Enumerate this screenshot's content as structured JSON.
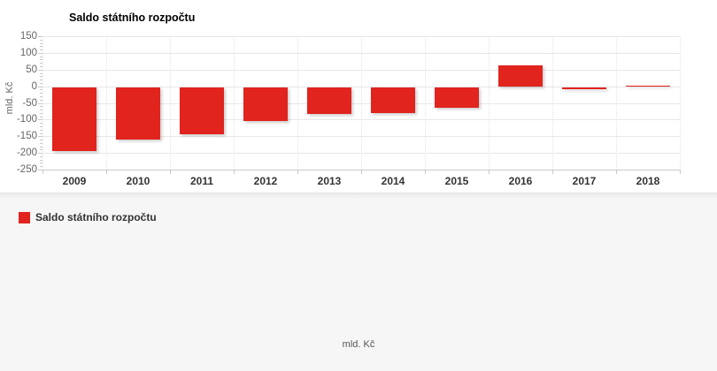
{
  "header": {
    "title": "Saldo státního rozpočtu"
  },
  "legend": {
    "label": "Saldo státního rozpočtu",
    "color": "#e1241e"
  },
  "bottom_axis_title": "mld. Kč",
  "colors": {
    "bar": "#e1241e",
    "panel_background": "#ffffff",
    "page_background": "#f6f6f6",
    "gridline": "#e7e7e7",
    "axis_text": "#666666",
    "category_text": "#333333"
  },
  "chart_data": {
    "type": "bar",
    "title": "Saldo státního rozpočtu",
    "categories": [
      "2009",
      "2010",
      "2011",
      "2012",
      "2013",
      "2014",
      "2015",
      "2016",
      "2017",
      "2018"
    ],
    "series": [
      {
        "name": "Saldo státního rozpočtu",
        "color": "#e1241e",
        "values": [
          -192.4,
          -156.4,
          -142.8,
          -101.0,
          -81.3,
          -77.8,
          -62.8,
          61.8,
          -6.2,
          2.9
        ]
      }
    ],
    "xlabel": "",
    "ylabel": "mld. Kč",
    "ylim": [
      -250,
      150
    ],
    "ytick_step": 50,
    "ytick_minor_step": 10,
    "grid": true,
    "legend_position": "bottom-left"
  }
}
